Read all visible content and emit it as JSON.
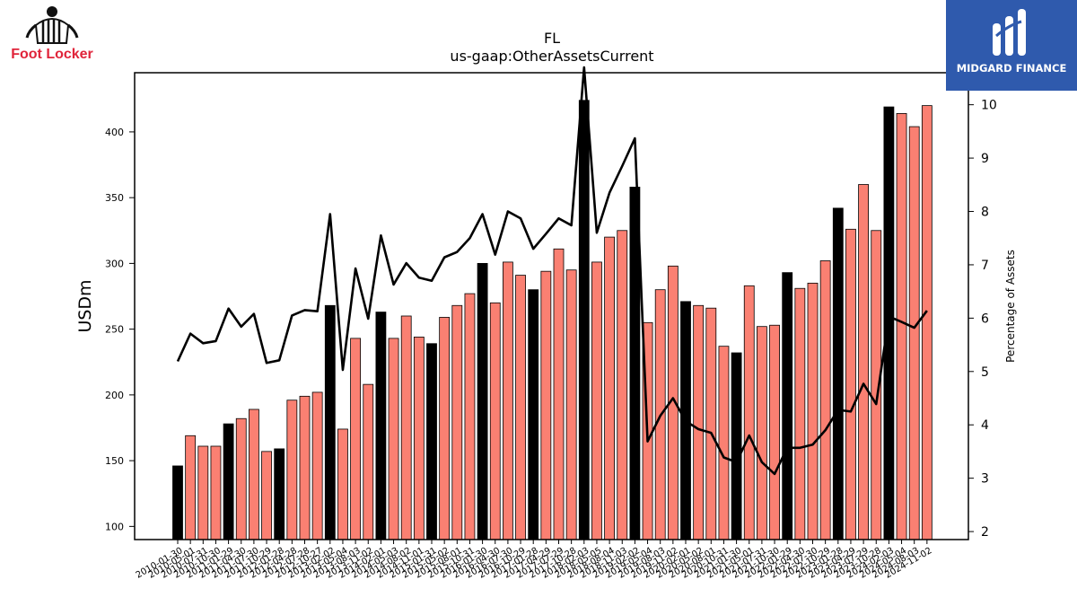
{
  "logos": {
    "left_wordmark": "Foot Locker",
    "right_wordmark": "MIDGARD FINANCE"
  },
  "chart_data": {
    "type": "bar",
    "title": "FL",
    "subtitle": "us-gaap:OtherAssetsCurrent",
    "ylabel": "USDm",
    "y2label": "Percentage of Assets",
    "ylim": [
      90,
      445
    ],
    "y2lim": [
      1.85,
      10.6
    ],
    "yticks": [
      100,
      150,
      200,
      250,
      300,
      350,
      400
    ],
    "y2ticks": [
      2,
      3,
      4,
      5,
      6,
      7,
      8,
      9,
      10
    ],
    "categories": [
      "2010-01-30",
      "2010-05-01",
      "2010-07-31",
      "2010-10-30",
      "2011-01-29",
      "2011-04-30",
      "2011-07-30",
      "2011-10-29",
      "2012-01-28",
      "2012-04-28",
      "2012-07-28",
      "2012-10-27",
      "2013-02-02",
      "2013-05-04",
      "2013-08-03",
      "2013-11-02",
      "2014-02-01",
      "2014-05-03",
      "2014-08-02",
      "2014-11-01",
      "2015-01-31",
      "2015-05-02",
      "2015-08-01",
      "2015-10-31",
      "2016-01-30",
      "2016-04-30",
      "2016-07-30",
      "2016-10-29",
      "2017-01-28",
      "2017-04-29",
      "2017-07-29",
      "2017-10-28",
      "2018-02-03",
      "2018-05-05",
      "2018-08-04",
      "2018-11-03",
      "2019-02-02",
      "2019-05-04",
      "2019-08-03",
      "2019-11-02",
      "2020-02-01",
      "2020-05-02",
      "2020-08-01",
      "2020-10-31",
      "2021-01-30",
      "2021-05-01",
      "2021-07-31",
      "2021-10-30",
      "2022-01-29",
      "2022-04-30",
      "2022-07-30",
      "2022-10-29",
      "2023-01-28",
      "2023-04-29",
      "2023-07-29",
      "2023-10-28",
      "2024-02-03",
      "2024-05-04",
      "2024-08-03",
      "2024-11-02"
    ],
    "tick_labels_printed": [
      "2010-01-30",
      "2010-05-01",
      "2010-07-31",
      "2010-10-30",
      "2011-01-29",
      "2011-04-30",
      "2011-07-30",
      "2011-10-29",
      "2012-01-28",
      "2012-04-28",
      "2012-07-28",
      "2012-10-27",
      "2013-02-02",
      "2013-05-04",
      "2013-08-03",
      "2013-11-02",
      "2014-02-01",
      "2014-05-03",
      "2014-08-02",
      "2014-11-01",
      "2015-01-31",
      "2015-05-02",
      "2015-08-01",
      "2015-10-31",
      "2016-01-30",
      "2016-04-30",
      "2016-07-30",
      "2016-10-29",
      "2017-01-28",
      "2017-04-29",
      "2017-07-29",
      "2017-10-28",
      "2018-02-03",
      "2018-05-05",
      "2018-08-04",
      "2018-11-03",
      "2019-02-02",
      "2019-05-04",
      "2019-08-03",
      "2019-11-02",
      "2020-02-01",
      "2020-05-02",
      "2020-08-01",
      "2020-10-31",
      "2021-01-30",
      "2021-05-01",
      "2021-07-31",
      "2021-10-30",
      "2022-01-29",
      "2022-04-30",
      "2022-07-30",
      "2022-10-29",
      "2023-01-28",
      "2023-04-29",
      "2023-07-29",
      "2023-10-28",
      "2024-02-03",
      "2024-05-04",
      "2024-08-03",
      "2024-11-02"
    ],
    "series": [
      {
        "type": "bar",
        "values": [
          146,
          169,
          161,
          161,
          178,
          182,
          189,
          157,
          159,
          196,
          199,
          202,
          268,
          174,
          243,
          208,
          263,
          243,
          260,
          244,
          239,
          259,
          268,
          277,
          300,
          270,
          301,
          291,
          280,
          294,
          311,
          295,
          424,
          301,
          320,
          325,
          358,
          255,
          280,
          298,
          271,
          268,
          266,
          237,
          232,
          283,
          252,
          253,
          293,
          281,
          285,
          302,
          342,
          326,
          360,
          325,
          419,
          414,
          404,
          420
        ],
        "highlight": [
          true,
          false,
          false,
          false,
          true,
          false,
          false,
          false,
          true,
          false,
          false,
          false,
          true,
          false,
          false,
          false,
          true,
          false,
          false,
          false,
          true,
          false,
          false,
          false,
          true,
          false,
          false,
          false,
          true,
          false,
          false,
          false,
          true,
          false,
          false,
          false,
          true,
          false,
          false,
          false,
          true,
          false,
          false,
          false,
          true,
          false,
          false,
          false,
          true,
          false,
          false,
          false,
          true,
          false,
          false,
          false,
          true,
          false,
          false,
          false
        ],
        "color": "#fa8072",
        "highlight_color": "#000000"
      },
      {
        "type": "line",
        "axis": "right",
        "values": [
          5.19,
          5.71,
          5.53,
          5.57,
          6.18,
          5.84,
          6.08,
          5.16,
          5.21,
          6.05,
          6.15,
          6.13,
          7.95,
          5.03,
          6.93,
          5.99,
          7.55,
          6.63,
          7.03,
          6.76,
          6.7,
          7.14,
          7.24,
          7.5,
          7.95,
          7.19,
          8.0,
          7.87,
          7.3,
          7.58,
          7.87,
          7.74,
          10.7,
          7.6,
          8.35,
          8.85,
          9.37,
          3.69,
          4.17,
          4.5,
          4.07,
          3.92,
          3.85,
          3.39,
          3.3,
          3.8,
          3.3,
          3.08,
          3.57,
          3.57,
          3.63,
          3.9,
          4.28,
          4.25,
          4.77,
          4.39,
          6.03,
          5.93,
          5.82,
          6.14
        ],
        "color": "#000000"
      }
    ],
    "grid": false,
    "legend": "none"
  }
}
